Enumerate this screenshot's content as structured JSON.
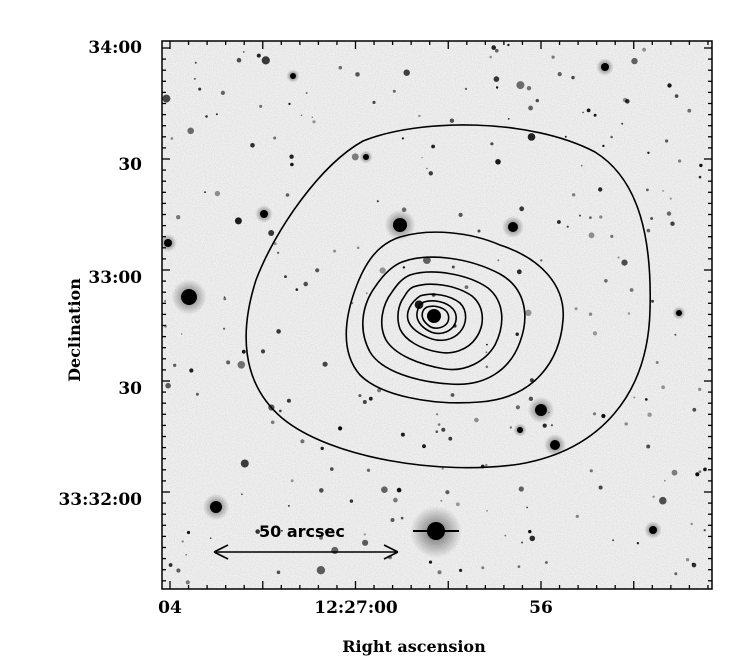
{
  "figure": {
    "x_axis_label": "Right ascension",
    "y_axis_label": "Declination",
    "x_tick_labels": [
      "04",
      "12:27:00",
      "56"
    ],
    "y_tick_labels": [
      "34:00",
      "30",
      "33:00",
      "30",
      "33:32:00"
    ],
    "scale_bar_label": "50 arcsec",
    "colors": {
      "background": "#f3f3f3",
      "ink": "#000000",
      "frame": "#000000"
    }
  }
}
